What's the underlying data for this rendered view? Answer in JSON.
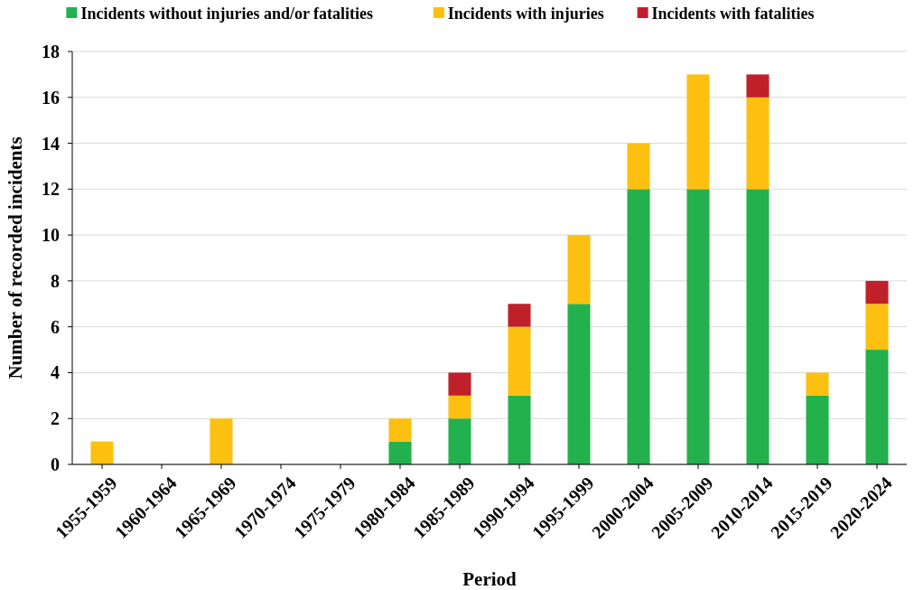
{
  "chart_data": {
    "type": "bar",
    "stacked": true,
    "xlabel": "Period",
    "ylabel": "Number of recorded incidents",
    "categories": [
      "1955-1959",
      "1960-1964",
      "1965-1969",
      "1970-1974",
      "1975-1979",
      "1980-1984",
      "1985-1989",
      "1990-1994",
      "1995-1999",
      "2000-2004",
      "2005-2009",
      "2010-2014",
      "2015-2019",
      "2020-2024"
    ],
    "series": [
      {
        "name": "Incidents without injuries and/or fatalities",
        "color": "#23b14d",
        "values": [
          0,
          0,
          0,
          0,
          0,
          1,
          2,
          3,
          7,
          12,
          12,
          12,
          3,
          5
        ]
      },
      {
        "name": "Incidents with injuries",
        "color": "#fdc010",
        "values": [
          1,
          0,
          2,
          0,
          0,
          1,
          1,
          3,
          3,
          2,
          5,
          4,
          1,
          2
        ]
      },
      {
        "name": "Incidents with fatalities",
        "color": "#c0202a",
        "values": [
          0,
          0,
          0,
          0,
          0,
          0,
          1,
          1,
          0,
          0,
          0,
          1,
          0,
          1
        ]
      }
    ],
    "ylim": [
      0,
      18
    ],
    "yticks": [
      0,
      2,
      4,
      6,
      8,
      10,
      12,
      14,
      16,
      18
    ],
    "grid": "y",
    "legend": "top"
  }
}
